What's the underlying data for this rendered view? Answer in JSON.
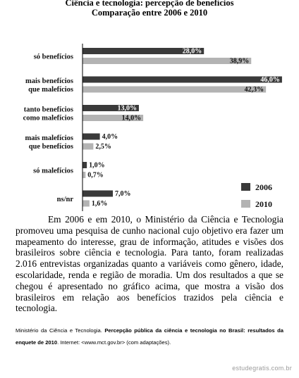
{
  "chart_data": {
    "type": "bar",
    "orientation": "horizontal",
    "title": "Ciência e tecnologia: percepção de benefícios",
    "subtitle": "Comparação entre 2006 e 2010",
    "categories": [
      "só benefícios",
      "mais benefícios que malefícios",
      "tanto benefícios como malefícios",
      "mais malefícios que benefícios",
      "só malefícios",
      "ns/nr"
    ],
    "category_lines": [
      [
        "só benefícios"
      ],
      [
        "mais benefícios",
        "que malefícios"
      ],
      [
        "tanto benefícios",
        "como malefícios"
      ],
      [
        "mais malefícios",
        "que benefícios"
      ],
      [
        "só malefícios"
      ],
      [
        "ns/nr"
      ]
    ],
    "series": [
      {
        "name": "2006",
        "color": "#3a3a3a",
        "values": [
          28.0,
          46.0,
          13.0,
          4.0,
          1.0,
          7.0
        ],
        "labels": [
          "28,0%",
          "46,0%",
          "13,0%",
          "4,0%",
          "1,0%",
          "7,0%"
        ]
      },
      {
        "name": "2010",
        "color": "#b3b3b3",
        "values": [
          38.9,
          42.3,
          14.0,
          2.5,
          0.7,
          1.6
        ],
        "labels": [
          "38,9%",
          "42,3%",
          "14,0%",
          "2,5%",
          "0,7%",
          "1,6%"
        ]
      }
    ],
    "xlim": [
      0,
      50
    ],
    "grid": false,
    "legend_position": "bottom-right",
    "xlabel": "",
    "ylabel": ""
  },
  "text": {
    "paragraph": "Em 2006 e em 2010, o Ministério da Ciência e Tecnologia promoveu uma pesquisa de cunho nacional cujo objetivo era fazer um mapeamento do interesse, grau de informação, atitudes e visões dos brasileiros sobre ciência e tecnologia. Para tanto, foram realizadas 2.016 entrevistas organizadas quanto a variáveis como gênero, idade, escolaridade, renda e região de moradia. Um dos resultados a que se chegou é apresentado no gráfico acima, que mostra a visão dos brasileiros em relação aos benefícios trazidos pela ciência e tecnologia.",
    "source_prefix": "Ministério da Ciência e Tecnologia. ",
    "source_title": "Percepção pública da ciência e tecnologia no Brasil: resultados da enquete de 2010",
    "source_suffix": ". Internet: <www.mct.gov.br> (com adaptações).",
    "watermark": "estudegratis.com.br"
  }
}
